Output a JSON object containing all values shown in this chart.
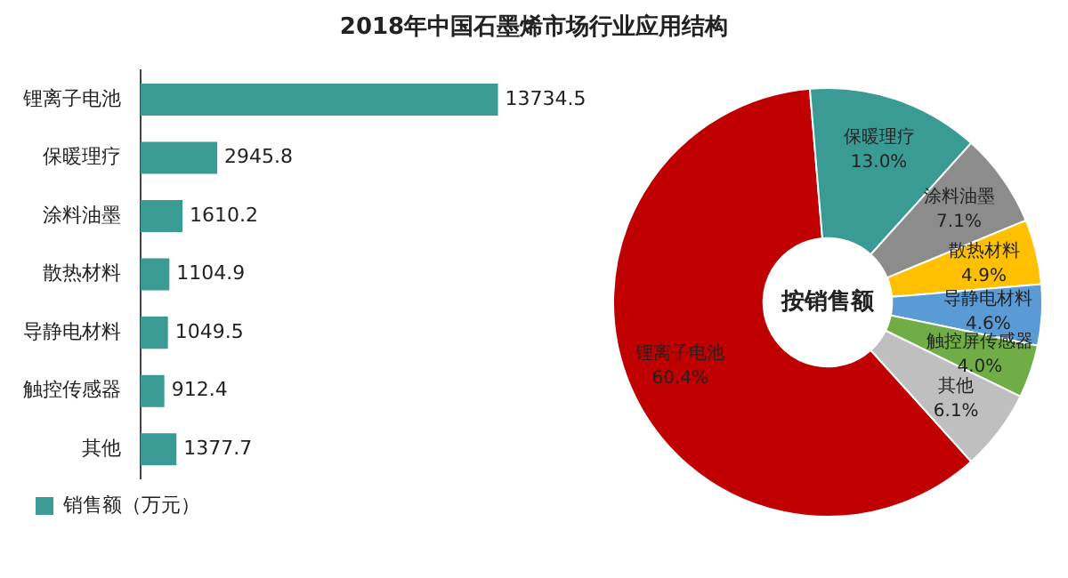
{
  "chart_data": [
    {
      "type": "bar",
      "orientation": "horizontal",
      "title": "2018年中国石墨烯市场行业应用结构",
      "categories": [
        "锂离子电池",
        "保暖理疗",
        "涂料油墨",
        "散热材料",
        "导静电材料",
        "触控传感器",
        "其他"
      ],
      "series": [
        {
          "name": "销售额（万元）",
          "color": "#3a9a94",
          "values": [
            13734.5,
            2945.8,
            1610.2,
            1104.9,
            1049.5,
            912.4,
            1377.7
          ]
        }
      ],
      "data_labels": true,
      "tick_labels": "y",
      "legend": "bottom"
    },
    {
      "type": "donut",
      "categories": [
        "锂离子电池",
        "保暖理疗",
        "涂料油墨",
        "散热材料",
        "导静电材料",
        "触控屏传感器",
        "其他"
      ],
      "values": [
        60.4,
        13.0,
        7.1,
        4.9,
        4.6,
        4.0,
        6.1
      ],
      "value_labels": [
        "60.4%",
        "13.0%",
        "7.1%",
        "4.9%",
        "4.6%",
        "4.0%",
        "6.1%"
      ],
      "colors": [
        "#c00000",
        "#3a9a94",
        "#8c8c8c",
        "#ffc000",
        "#5b9bd5",
        "#70ad47",
        "#bfbfbf"
      ],
      "annotations": [
        "按销售额"
      ]
    }
  ]
}
